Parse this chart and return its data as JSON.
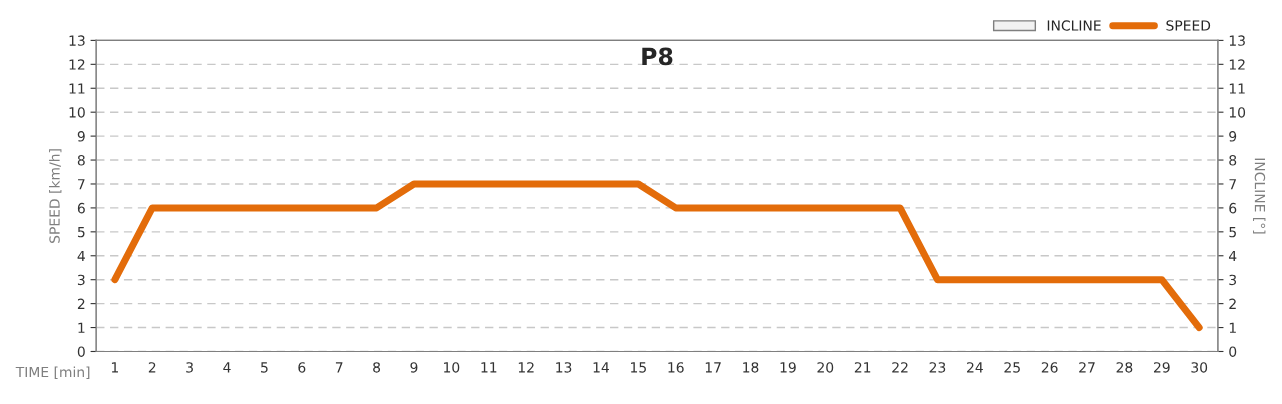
{
  "chart_data": {
    "type": "line",
    "title": "P8",
    "xlabel": "TIME [min]",
    "ylabel": "SPEED [km/h]",
    "y2label": "INCLINE [°]",
    "categories": [
      "1",
      "2",
      "3",
      "4",
      "5",
      "6",
      "7",
      "8",
      "9",
      "10",
      "11",
      "12",
      "13",
      "14",
      "15",
      "16",
      "17",
      "18",
      "19",
      "20",
      "21",
      "22",
      "23",
      "24",
      "25",
      "26",
      "27",
      "28",
      "29",
      "30"
    ],
    "series": [
      {
        "name": "INCLINE",
        "type": "bar",
        "color": "#f2f2f2",
        "values": [
          0,
          0,
          0,
          0,
          0,
          0,
          0,
          0,
          0,
          0,
          0,
          0,
          0,
          0,
          0,
          0,
          0,
          0,
          0,
          0,
          0,
          0,
          0,
          0,
          0,
          0,
          0,
          0,
          0,
          0
        ]
      },
      {
        "name": "SPEED",
        "color": "#e36c0a",
        "values": [
          3,
          6,
          6,
          6,
          6,
          6,
          6,
          6,
          7,
          7,
          7,
          7,
          7,
          7,
          7,
          6,
          6,
          6,
          6,
          6,
          6,
          6,
          3,
          3,
          3,
          3,
          3,
          3,
          3,
          1
        ]
      }
    ],
    "ylim": [
      0,
      13
    ],
    "yticks": [
      0,
      1,
      2,
      3,
      4,
      5,
      6,
      7,
      8,
      9,
      10,
      11,
      12,
      13
    ],
    "y2lim": [
      0,
      13
    ],
    "y2ticks": [
      0,
      1,
      2,
      3,
      4,
      5,
      6,
      7,
      8,
      9,
      10,
      11,
      12,
      13
    ],
    "grid": "y",
    "legend": "top right",
    "marker": "none",
    "line_style": "solid"
  }
}
